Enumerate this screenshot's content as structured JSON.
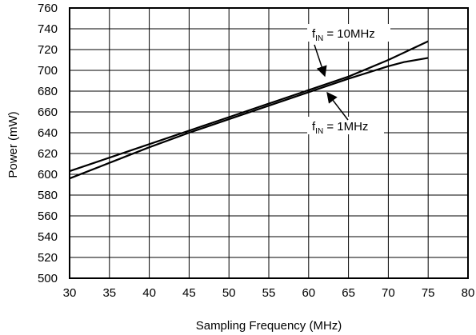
{
  "chart_data": {
    "type": "line",
    "title": "",
    "xlabel": "Sampling Frequency (MHz)",
    "ylabel": "Power (mW)",
    "xlim": [
      30,
      80
    ],
    "ylim": [
      500,
      760
    ],
    "x_ticks": [
      30,
      35,
      40,
      45,
      50,
      55,
      60,
      65,
      70,
      75,
      80
    ],
    "y_ticks": [
      500,
      520,
      540,
      560,
      580,
      600,
      620,
      640,
      660,
      680,
      700,
      720,
      740,
      760
    ],
    "grid": true,
    "legend": "none",
    "series": [
      {
        "name": "fIN = 10MHz",
        "x": [
          30,
          35,
          40,
          45,
          50,
          55,
          60,
          65,
          70,
          75
        ],
        "y": [
          603,
          616,
          629,
          642,
          655,
          668,
          681,
          694,
          710,
          728
        ]
      },
      {
        "name": "fIN = 1MHz",
        "x": [
          30,
          35,
          40,
          45,
          50,
          55,
          60,
          65,
          70,
          72,
          75
        ],
        "y": [
          596,
          611,
          626,
          640,
          653,
          666,
          679,
          692,
          704,
          708,
          712
        ]
      }
    ],
    "annotations": [
      {
        "text": "f",
        "sub": "IN",
        "rest": " = 10MHz",
        "series": 0
      },
      {
        "text": "f",
        "sub": "IN",
        "rest": " = 1MHz",
        "series": 1
      }
    ]
  }
}
